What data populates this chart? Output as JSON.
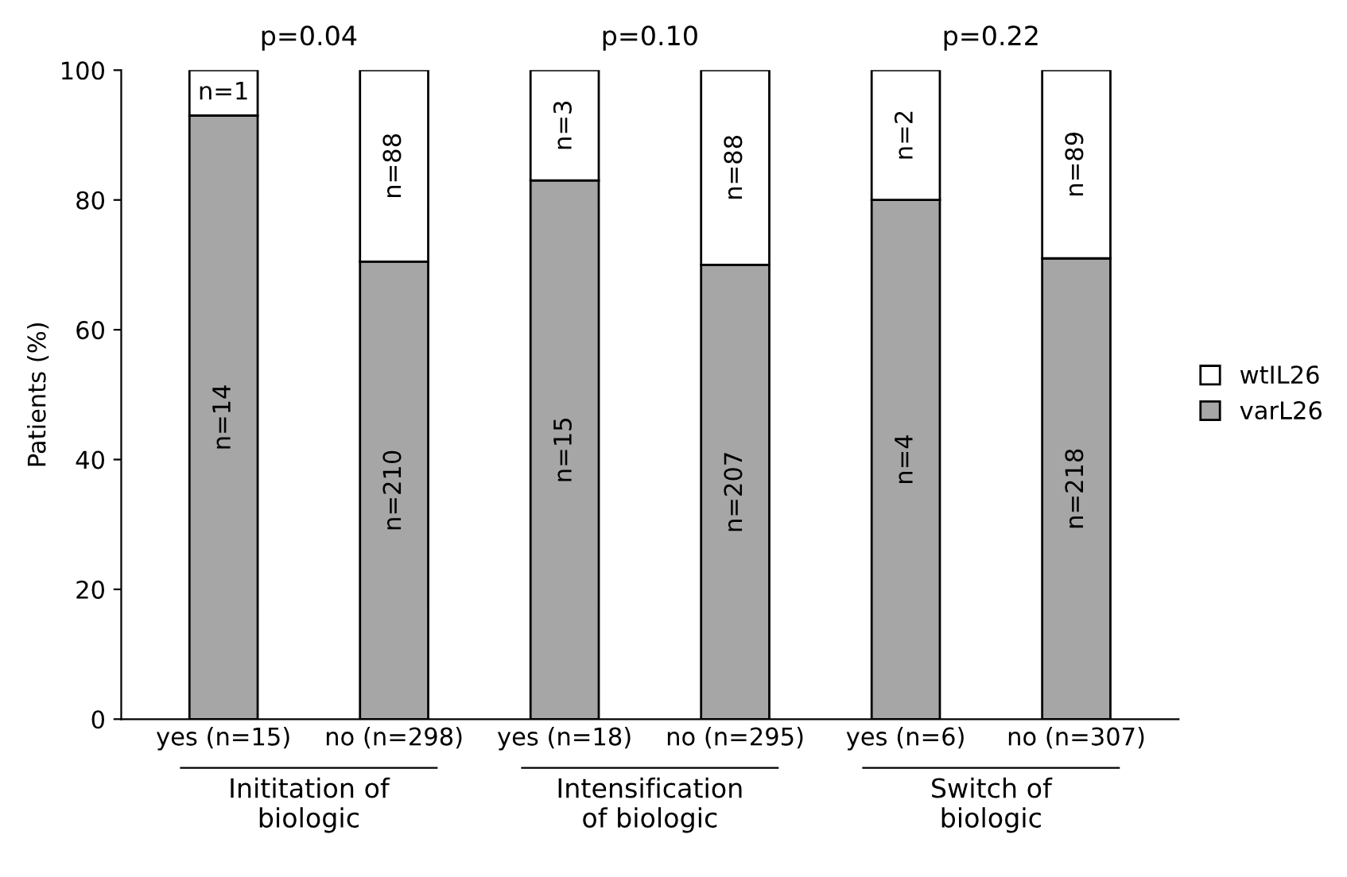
{
  "chart_data": {
    "type": "bar",
    "stacked": true,
    "ylabel": "Patients (%)",
    "categories": [
      "yes (n=15)",
      "no (n=298)",
      "yes (n=18)",
      "no (n=295)",
      "yes (n=6)",
      "no (n=307)"
    ],
    "series": [
      {
        "name": "varL26",
        "color": "#a6a6a6",
        "values": [
          93,
          70.5,
          83,
          70,
          80,
          71
        ]
      },
      {
        "name": "wtIL26",
        "color": "#ffffff",
        "values": [
          7,
          29.5,
          17,
          30,
          20,
          29
        ]
      }
    ],
    "ylim": [
      0,
      100
    ],
    "yticks": [
      0,
      20,
      40,
      60,
      80,
      100
    ],
    "grid": false,
    "legend": "right",
    "annotations": [
      "p=0.04",
      "p=0.10",
      "p=0.22",
      "Inititation of\nbiologic",
      "Intensification\nof biologic",
      "Switch of\nbiologic",
      "n=14",
      "n=210",
      "n=15",
      "n=207",
      "n=4",
      "n=218",
      "n=1",
      "n=88",
      "n=3",
      "n=88",
      "n=2",
      "n=89"
    ]
  }
}
